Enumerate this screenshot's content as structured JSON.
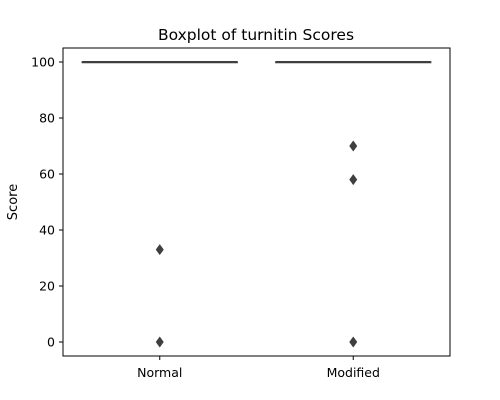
{
  "chart_data": {
    "type": "boxplot",
    "title": "Boxplot of turnitin Scores",
    "xlabel": "",
    "ylabel": "Score",
    "ylim": [
      -5,
      105
    ],
    "yticks": [
      0,
      20,
      40,
      60,
      80,
      100
    ],
    "ytick_labels": [
      "0",
      "20",
      "40",
      "60",
      "80",
      "100"
    ],
    "categories": [
      "Normal",
      "Modified"
    ],
    "boxes": [
      {
        "category": "Normal",
        "q1": 100,
        "median": 100,
        "q3": 100,
        "whisker_low": 100,
        "whisker_high": 100,
        "fliers": [
          33,
          0
        ]
      },
      {
        "category": "Modified",
        "q1": 100,
        "median": 100,
        "q3": 100,
        "whisker_low": 100,
        "whisker_high": 100,
        "fliers": [
          70,
          58,
          0
        ]
      }
    ],
    "grid": false,
    "colors": {
      "box_line": "#3f3f3f",
      "flier": "#3f3f3f"
    }
  }
}
